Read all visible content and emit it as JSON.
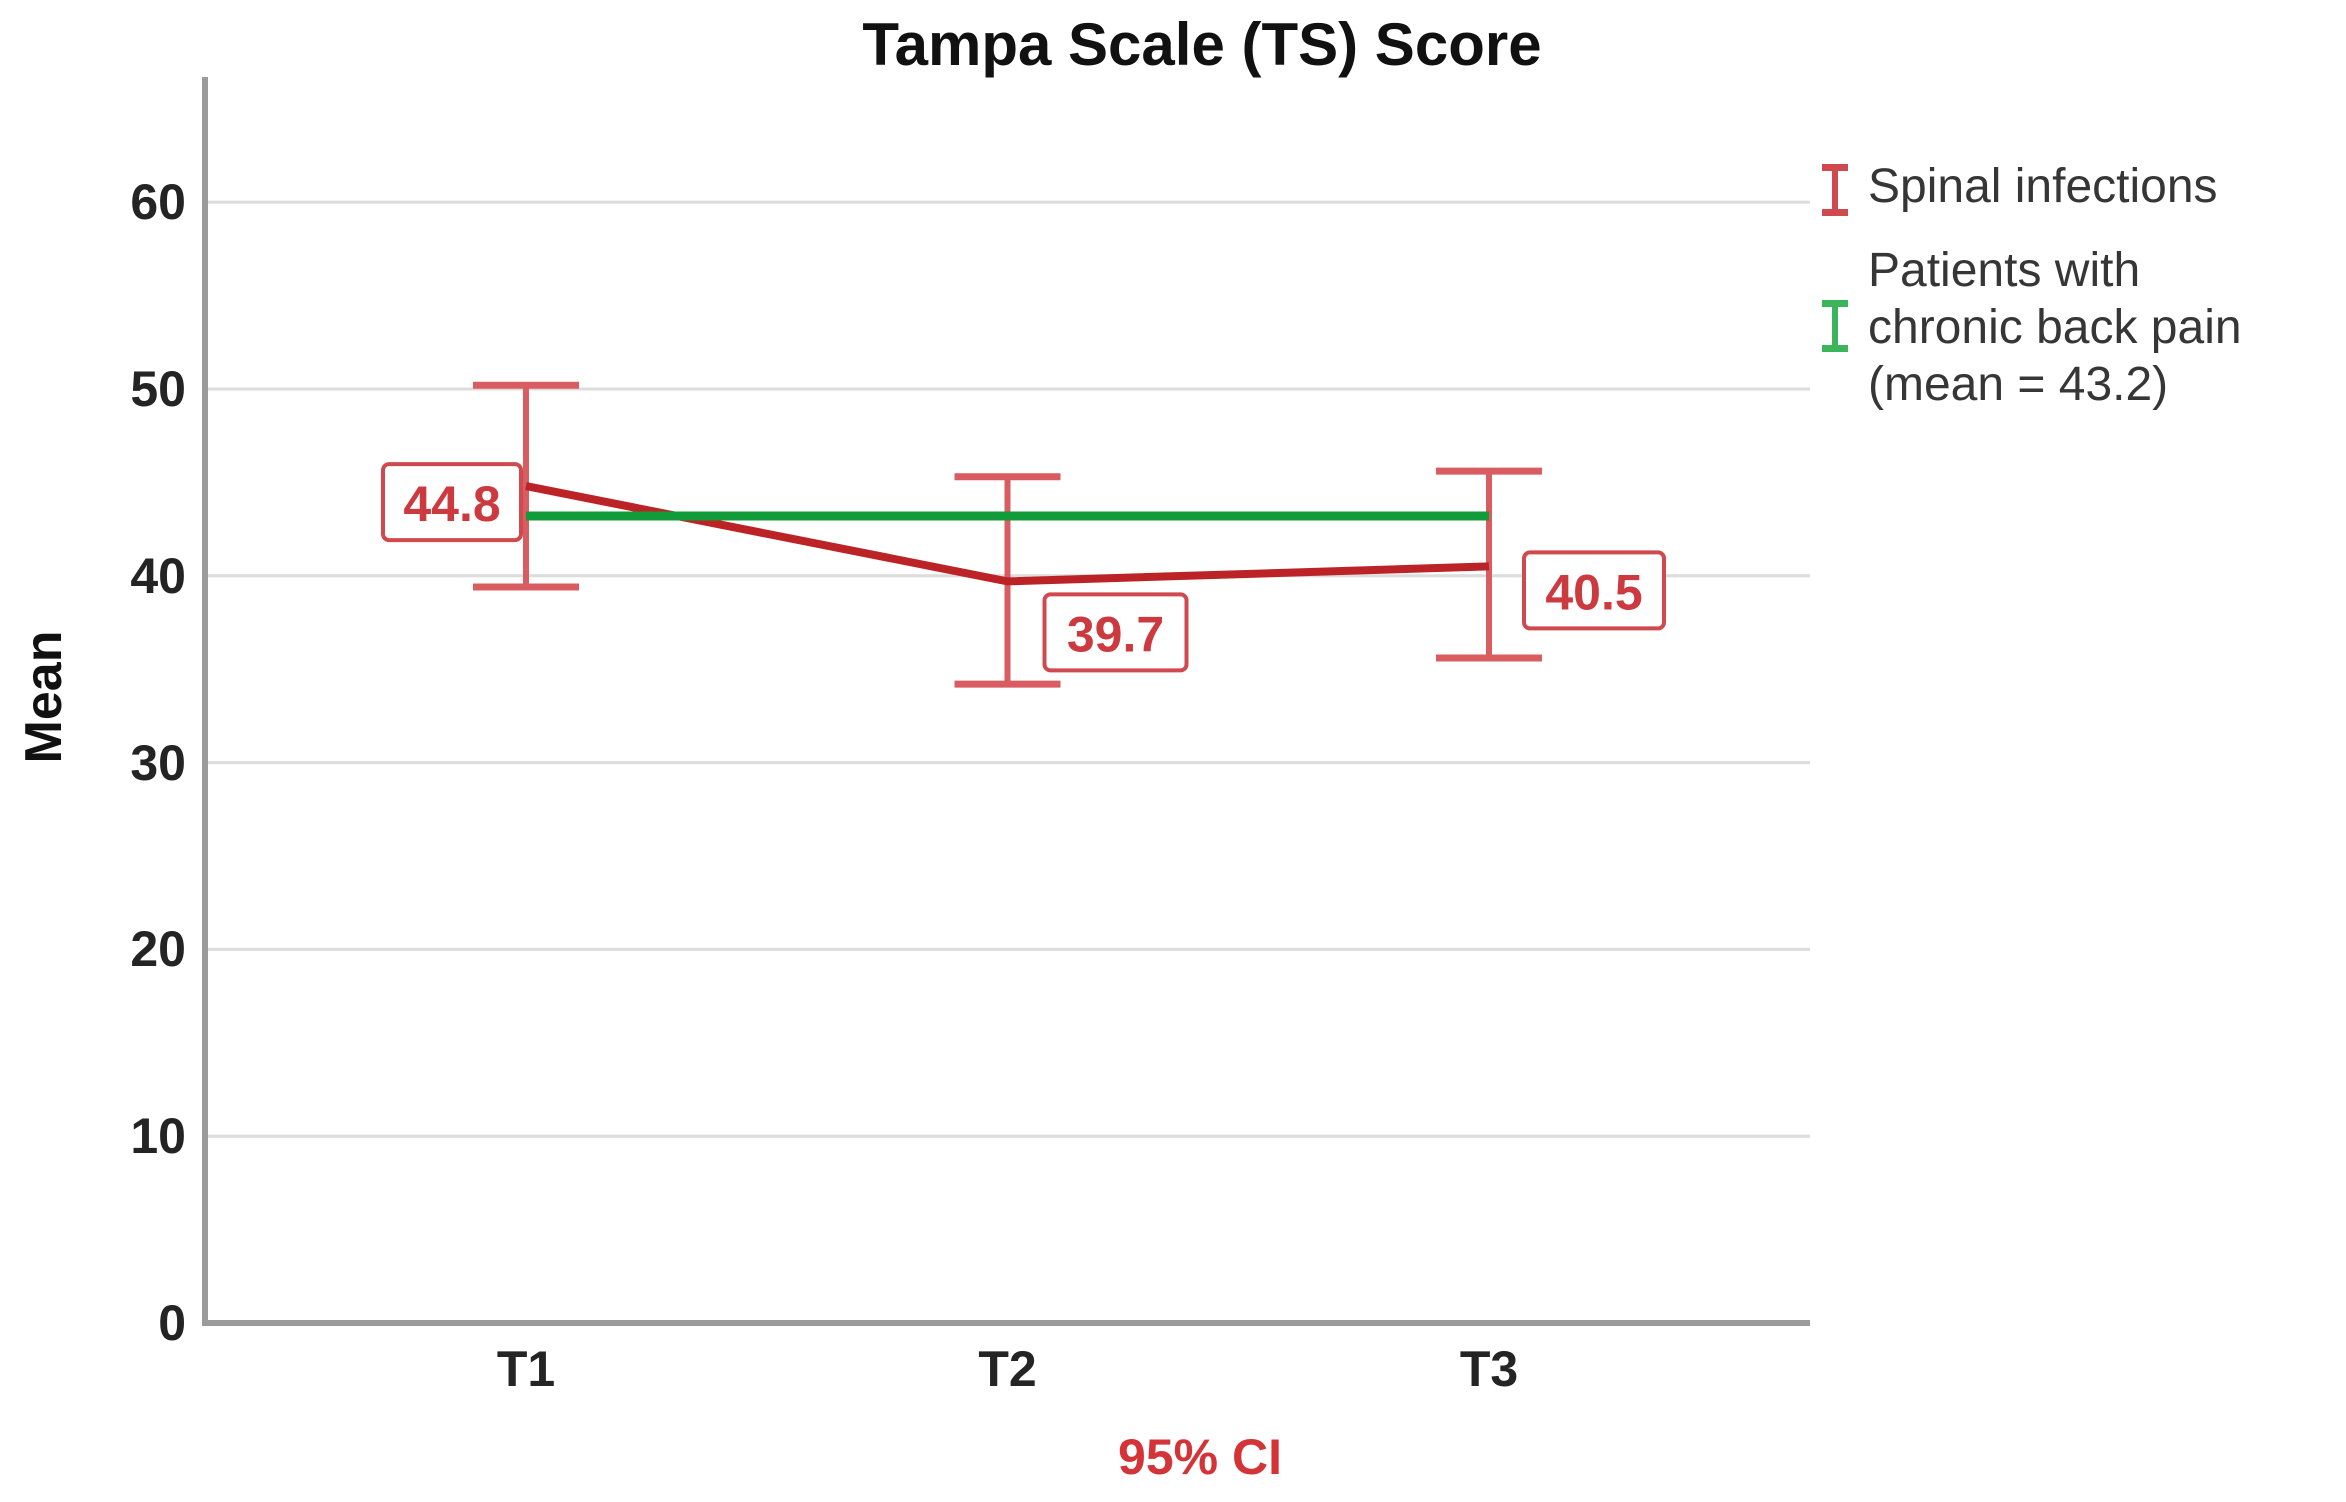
{
  "title": "Tampa Scale (TS) Score",
  "footnote": "95% CI",
  "legend": {
    "items": [
      {
        "label": "Spinal infections",
        "glyph": "error-bar-icon",
        "color": "#d0494f"
      },
      {
        "label": "Patients with\nchronic back pain\n(mean = 43.2)",
        "glyph": "error-bar-icon",
        "color": "#3cb45a"
      }
    ]
  },
  "chart_data": {
    "type": "line",
    "title": "Tampa Scale (TS) Score",
    "xlabel": "",
    "ylabel": "Mean",
    "x_tick_labels": [
      "T1",
      "T2",
      "T3"
    ],
    "y_ticks": [
      0,
      10,
      20,
      30,
      40,
      50,
      60
    ],
    "ylim": [
      0,
      66.7
    ],
    "grid": true,
    "legend_position": "right",
    "error_bar_meaning": "95% CI",
    "series": [
      {
        "name": "Spinal infections",
        "color": "#bb2327",
        "error_bar_color": "#d85c60",
        "label_color": "#cc3a40",
        "values": [
          44.8,
          39.7,
          40.5
        ],
        "ci_low": [
          39.4,
          34.2,
          35.6
        ],
        "ci_high": [
          50.2,
          45.3,
          45.6
        ],
        "point_labels": [
          "44.8",
          "39.7",
          "40.5"
        ]
      }
    ],
    "reference_line": {
      "name": "Patients with chronic back pain",
      "value": 43.2,
      "color": "#129b39"
    },
    "colors": {
      "axis": "#9b9b9b",
      "grid": "#dcdcdc",
      "tick_text": "#242424",
      "footnote_red": "#d43438"
    }
  }
}
